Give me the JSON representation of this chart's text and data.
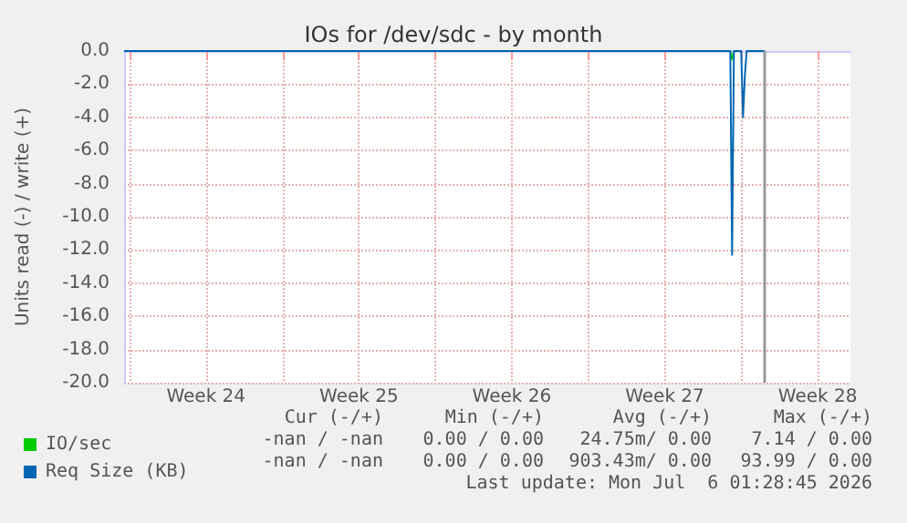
{
  "chart_data": {
    "type": "line",
    "title": "IOs for /dev/sdc - by month",
    "ylabel": "Units read (-) / write (+)",
    "xlim": [
      "2026-06-07T18:00",
      "2026-07-11T00:00"
    ],
    "xticks": [
      {
        "value": "2026-06-08",
        "label": null
      },
      {
        "value": "2026-06-11T12:00",
        "label": "Week 24"
      },
      {
        "value": "2026-06-15",
        "label": null
      },
      {
        "value": "2026-06-18T12:00",
        "label": "Week 25"
      },
      {
        "value": "2026-06-22",
        "label": null
      },
      {
        "value": "2026-06-25T12:00",
        "label": "Week 26"
      },
      {
        "value": "2026-06-29",
        "label": null
      },
      {
        "value": "2026-07-02T12:00",
        "label": "Week 27"
      },
      {
        "value": "2026-07-06",
        "label": null
      },
      {
        "value": "2026-07-09T12:00",
        "label": "Week 28"
      }
    ],
    "ylim": [
      -20,
      0
    ],
    "yticks": [
      {
        "value": -20,
        "label": "-20.0"
      },
      {
        "value": -18,
        "label": "-18.0"
      },
      {
        "value": -16,
        "label": "-16.0"
      },
      {
        "value": -14,
        "label": "-14.0"
      },
      {
        "value": -12,
        "label": "-12.0"
      },
      {
        "value": -10,
        "label": "-10.0"
      },
      {
        "value": -8,
        "label": "-8.0"
      },
      {
        "value": -6,
        "label": "-6.0"
      },
      {
        "value": -4,
        "label": "-4.0"
      },
      {
        "value": -2,
        "label": "-2.0"
      },
      {
        "value": 0,
        "label": "0.0"
      }
    ],
    "grid": true,
    "legend": "bottom left",
    "marker": "none",
    "line_style": "solid",
    "series": [
      {
        "name": "IO/sec",
        "color": "#00cc00",
        "x": [
          "2026-07-05T12:00",
          "2026-07-05T14:00",
          "2026-07-05T16:00"
        ],
        "values": [
          0,
          -0.5,
          0
        ]
      },
      {
        "name": "Req Size (KB)",
        "color": "#0066b3",
        "x": [
          "2026-06-07T18:00",
          "2026-07-05T12:00",
          "2026-07-05T14:00",
          "2026-07-05T16:00",
          "2026-07-06T00:00",
          "2026-07-06T02:00",
          "2026-07-06T04:00",
          "2026-07-06T06:00",
          "2026-07-07T02:00"
        ],
        "values": [
          0,
          0,
          -12.3,
          0,
          0,
          -4.0,
          -1.5,
          0,
          0
        ]
      }
    ],
    "ref_lines": [
      {
        "axis": "x",
        "value": "2026-07-07T02:00",
        "label": null,
        "color": "#999999"
      }
    ],
    "annotations": [
      "Cur (-/+)",
      "Min (-/+)",
      "Avg (-/+)",
      "Max (-/+)",
      "-nan / -nan",
      "0.00 / 0.00",
      "24.75m/ 0.00",
      "7.14 / 0.00",
      "-nan / -nan",
      "0.00 / 0.00",
      "903.43m/ 0.00",
      "93.99 / 0.00",
      "Last update: Mon Jul  6 01:28:45 2026"
    ]
  }
}
